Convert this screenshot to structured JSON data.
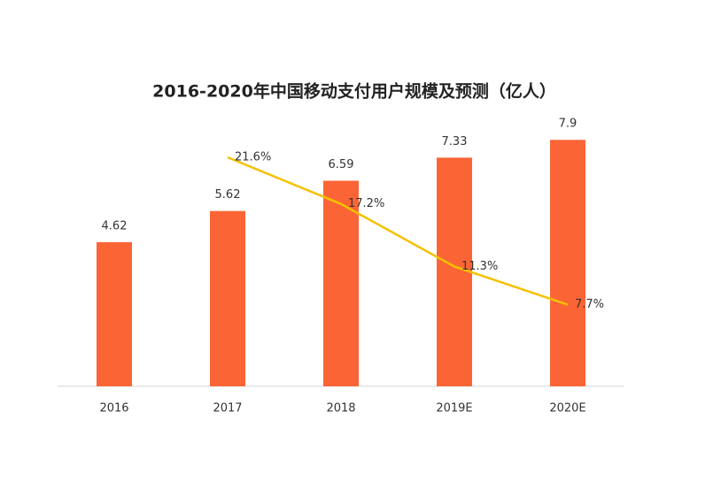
{
  "chart_data": {
    "type": "bar",
    "title": "2016-2020年中国移动支付用户规模及预测（亿人）",
    "categories": [
      "2016",
      "2017",
      "2018",
      "2019E",
      "2020E"
    ],
    "values": [
      4.62,
      5.62,
      6.59,
      7.33,
      7.9
    ],
    "color": "#fb6535",
    "ylim": [
      0,
      8.7
    ],
    "series": [
      {
        "type": "line",
        "axis": "y2",
        "color": "#f5c100",
        "values": [
          null,
          21.6,
          17.2,
          11.3,
          7.7
        ],
        "value_labels": [
          null,
          "21.6%",
          "17.2%",
          "11.3%",
          "7.7%"
        ]
      }
    ],
    "y2lim": [
      0,
      25.6
    ]
  }
}
